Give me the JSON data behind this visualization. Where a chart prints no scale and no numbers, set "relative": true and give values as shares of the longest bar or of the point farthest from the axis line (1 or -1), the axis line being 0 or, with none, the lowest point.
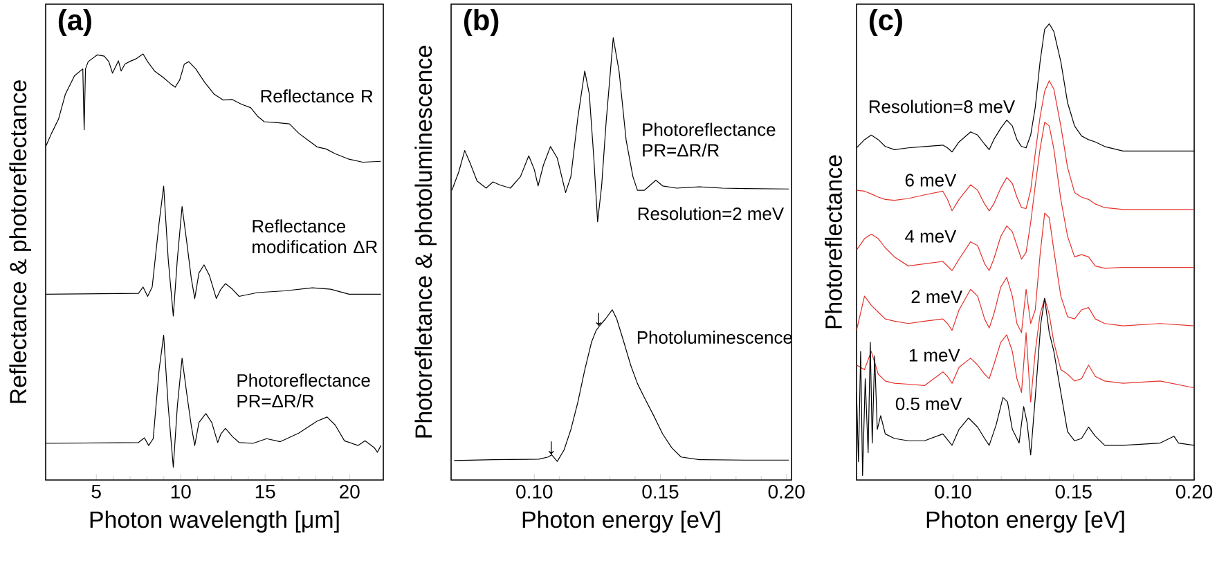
{
  "chart_data": [
    {
      "type": "line",
      "relative": true,
      "title": "(a)",
      "xlabel": "Photon wavelength [μm]",
      "ylabel": "Reflectance & photoreflectance",
      "xlim": [
        2,
        22
      ],
      "xticks": [
        5,
        10,
        15,
        20
      ],
      "series": [
        {
          "name": "Reflectance R",
          "color": "#000000",
          "x": [
            2.03,
            2.35,
            2.76,
            3.17,
            3.71,
            4.2,
            4.28,
            4.36,
            4.52,
            5.06,
            5.47,
            5.74,
            5.96,
            6.15,
            6.31,
            6.47,
            6.69,
            6.96,
            7.37,
            7.77,
            8.04,
            8.45,
            8.99,
            9.4,
            9.67,
            9.94,
            10.21,
            10.48,
            10.89,
            11.43,
            11.97,
            12.51,
            13.06,
            13.6,
            14.14,
            14.55,
            14.95,
            15.63,
            16.44,
            16.99,
            17.53,
            18.07,
            18.61,
            19.15,
            19.97,
            20.78,
            21.86
          ],
          "values": [
            0.785,
            0.814,
            0.847,
            0.906,
            0.949,
            0.965,
            0.822,
            0.965,
            0.982,
            0.998,
            0.995,
            0.982,
            0.955,
            0.971,
            0.984,
            0.96,
            0.976,
            0.982,
            0.989,
            1.0,
            0.982,
            0.96,
            0.944,
            0.93,
            0.922,
            0.939,
            0.976,
            0.982,
            0.965,
            0.933,
            0.906,
            0.892,
            0.893,
            0.882,
            0.874,
            0.854,
            0.841,
            0.839,
            0.836,
            0.814,
            0.798,
            0.782,
            0.777,
            0.766,
            0.753,
            0.746,
            0.748
          ]
        },
        {
          "name": "Reflectance modification ΔR",
          "color": "#000000",
          "x": [
            2.03,
            7.5,
            7.77,
            8.04,
            8.31,
            8.72,
            8.99,
            9.26,
            9.56,
            9.8,
            10.08,
            10.35,
            10.62,
            10.83,
            11.08,
            11.38,
            11.7,
            12.11,
            12.38,
            12.65,
            13.06,
            13.46,
            14.55,
            16.17,
            17.8,
            18.88,
            19.97,
            21.86
          ],
          "values": [
            0.436,
            0.438,
            0.453,
            0.431,
            0.453,
            0.604,
            0.69,
            0.518,
            0.385,
            0.518,
            0.642,
            0.561,
            0.475,
            0.426,
            0.486,
            0.505,
            0.48,
            0.426,
            0.448,
            0.461,
            0.448,
            0.431,
            0.44,
            0.444,
            0.451,
            0.448,
            0.436,
            0.436
          ]
        },
        {
          "name": "Photoreflectance PR=ΔR/R",
          "color": "#000000",
          "x": [
            2.03,
            7.5,
            7.85,
            8.1,
            8.37,
            8.72,
            8.99,
            9.26,
            9.56,
            9.8,
            10.08,
            10.35,
            10.62,
            10.83,
            11.08,
            11.49,
            11.84,
            12.19,
            12.38,
            12.65,
            13.06,
            13.46,
            14.28,
            15.09,
            15.9,
            16.99,
            18.07,
            18.67,
            19.15,
            19.7,
            20.51,
            20.92,
            21.46,
            21.65,
            21.86
          ],
          "values": [
            0.086,
            0.088,
            0.099,
            0.081,
            0.097,
            0.259,
            0.34,
            0.173,
            0.03,
            0.173,
            0.286,
            0.205,
            0.129,
            0.081,
            0.135,
            0.156,
            0.135,
            0.088,
            0.108,
            0.121,
            0.102,
            0.088,
            0.086,
            0.097,
            0.09,
            0.11,
            0.138,
            0.148,
            0.129,
            0.092,
            0.081,
            0.092,
            0.076,
            0.065,
            0.081
          ]
        }
      ]
    },
    {
      "type": "line",
      "relative": true,
      "title": "(b)",
      "xlabel": "Photon energy [eV]",
      "ylabel": "Photorefletance & photoluminescence",
      "xlim": [
        0.067,
        0.202
      ],
      "xticks": [
        {
          "value": 0.1,
          "label": "0.10"
        },
        {
          "value": 0.15,
          "label": "0.15"
        },
        {
          "value": 0.2,
          "label": "0.20"
        }
      ],
      "annotations": [
        "Resolution=2 meV",
        {
          "text": "↓",
          "x": 0.1067,
          "y": 0.057
        },
        {
          "text": "↓",
          "x": 0.1255,
          "y": 0.348
        }
      ],
      "series": [
        {
          "name": "Photoreflectance PR=ΔR/R",
          "color": "#000000",
          "x": [
            0.0673,
            0.07,
            0.0724,
            0.0745,
            0.0773,
            0.0809,
            0.0836,
            0.0864,
            0.0905,
            0.0945,
            0.0978,
            0.1,
            0.1015,
            0.1036,
            0.1064,
            0.1091,
            0.1124,
            0.1145,
            0.1173,
            0.12,
            0.1218,
            0.1236,
            0.1251,
            0.1267,
            0.1285,
            0.1313,
            0.1336,
            0.1364,
            0.1391,
            0.1409,
            0.1436,
            0.1482,
            0.1509,
            0.1564,
            0.1655,
            0.1745,
            0.1836,
            0.2009
          ],
          "values": [
            0.655,
            0.696,
            0.745,
            0.717,
            0.676,
            0.66,
            0.674,
            0.667,
            0.66,
            0.686,
            0.733,
            0.702,
            0.665,
            0.712,
            0.754,
            0.728,
            0.65,
            0.686,
            0.821,
            0.925,
            0.873,
            0.728,
            0.584,
            0.665,
            0.811,
            1.0,
            0.925,
            0.769,
            0.686,
            0.655,
            0.655,
            0.678,
            0.665,
            0.66,
            0.663,
            0.66,
            0.659,
            0.658
          ]
        },
        {
          "name": "Photoluminescence",
          "color": "#000000",
          "x": [
            0.0682,
            0.0836,
            0.1018,
            0.1055,
            0.1069,
            0.1091,
            0.1118,
            0.1145,
            0.1173,
            0.12,
            0.1227,
            0.1245,
            0.1258,
            0.1282,
            0.1309,
            0.1327,
            0.1355,
            0.1382,
            0.1409,
            0.1436,
            0.1473,
            0.1509,
            0.1545,
            0.1582,
            0.1655,
            0.1836,
            0.2009
          ],
          "values": [
            0.044,
            0.046,
            0.047,
            0.052,
            0.057,
            0.042,
            0.068,
            0.114,
            0.177,
            0.249,
            0.312,
            0.338,
            0.348,
            0.364,
            0.385,
            0.364,
            0.312,
            0.26,
            0.218,
            0.187,
            0.146,
            0.104,
            0.073,
            0.052,
            0.046,
            0.045,
            0.045
          ]
        }
      ]
    },
    {
      "type": "line",
      "relative": true,
      "title": "(c)",
      "xlabel": "Photon energy [eV]",
      "ylabel": "Photoreflectance",
      "xlim": [
        0.06,
        0.2
      ],
      "xticks": [
        {
          "value": 0.1,
          "label": "0.10"
        },
        {
          "value": 0.15,
          "label": "0.15"
        },
        {
          "value": 0.2,
          "label": "0.20"
        }
      ],
      "series": [
        {
          "name": "Resolution=8 meV",
          "color": "#000000",
          "x": [
            0.06,
            0.0633,
            0.0661,
            0.069,
            0.0719,
            0.0757,
            0.0815,
            0.0882,
            0.0958,
            0.0977,
            0.0996,
            0.1025,
            0.1073,
            0.1102,
            0.1131,
            0.115,
            0.1169,
            0.1198,
            0.1223,
            0.1246,
            0.1265,
            0.1284,
            0.1303,
            0.1322,
            0.1341,
            0.1361,
            0.138,
            0.1399,
            0.1418,
            0.1447,
            0.1475,
            0.1504,
            0.1533,
            0.1562,
            0.159,
            0.1629,
            0.1705,
            0.1859,
            0.2
          ],
          "values": [
            0.728,
            0.746,
            0.756,
            0.746,
            0.731,
            0.724,
            0.728,
            0.731,
            0.734,
            0.728,
            0.719,
            0.741,
            0.763,
            0.756,
            0.736,
            0.724,
            0.746,
            0.771,
            0.789,
            0.776,
            0.746,
            0.731,
            0.728,
            0.756,
            0.817,
            0.917,
            0.988,
            1.0,
            0.983,
            0.917,
            0.827,
            0.776,
            0.754,
            0.746,
            0.741,
            0.731,
            0.721,
            0.721,
            0.721
          ]
        },
        {
          "name": "6 meV",
          "color": "#e5312b",
          "x": [
            0.06,
            0.0633,
            0.0661,
            0.069,
            0.0719,
            0.0757,
            0.0815,
            0.0882,
            0.0958,
            0.0977,
            0.0996,
            0.1025,
            0.1073,
            0.1102,
            0.1131,
            0.115,
            0.1169,
            0.1198,
            0.1223,
            0.1246,
            0.1265,
            0.1284,
            0.1303,
            0.1322,
            0.1341,
            0.1361,
            0.138,
            0.1399,
            0.1418,
            0.1447,
            0.1475,
            0.1504,
            0.1533,
            0.1562,
            0.159,
            0.1629,
            0.1705,
            0.1859,
            0.2
          ],
          "values": [
            0.635,
            0.633,
            0.627,
            0.62,
            0.615,
            0.613,
            0.617,
            0.625,
            0.633,
            0.615,
            0.59,
            0.615,
            0.647,
            0.635,
            0.605,
            0.59,
            0.605,
            0.64,
            0.663,
            0.65,
            0.62,
            0.597,
            0.595,
            0.635,
            0.716,
            0.796,
            0.852,
            0.875,
            0.857,
            0.776,
            0.685,
            0.63,
            0.62,
            0.615,
            0.605,
            0.597,
            0.593,
            0.593,
            0.593
          ]
        },
        {
          "name": "4 meV",
          "color": "#e5312b",
          "x": [
            0.06,
            0.0633,
            0.0661,
            0.069,
            0.0719,
            0.0757,
            0.0815,
            0.0882,
            0.0958,
            0.0977,
            0.0996,
            0.1025,
            0.1073,
            0.1102,
            0.1131,
            0.115,
            0.1169,
            0.1198,
            0.1223,
            0.1246,
            0.1265,
            0.1284,
            0.1303,
            0.1322,
            0.1341,
            0.1361,
            0.138,
            0.1399,
            0.1418,
            0.1447,
            0.1475,
            0.1504,
            0.1533,
            0.1562,
            0.159,
            0.1629,
            0.1705,
            0.1859,
            0.2
          ],
          "values": [
            0.504,
            0.529,
            0.539,
            0.529,
            0.509,
            0.489,
            0.469,
            0.474,
            0.479,
            0.469,
            0.459,
            0.484,
            0.522,
            0.514,
            0.474,
            0.459,
            0.484,
            0.534,
            0.557,
            0.544,
            0.514,
            0.484,
            0.499,
            0.564,
            0.645,
            0.726,
            0.784,
            0.776,
            0.726,
            0.615,
            0.534,
            0.489,
            0.494,
            0.489,
            0.469,
            0.464,
            0.466,
            0.466,
            0.466
          ]
        },
        {
          "name": "2 meV",
          "color": "#e5312b",
          "x": [
            0.06,
            0.0633,
            0.0661,
            0.069,
            0.0719,
            0.0757,
            0.0815,
            0.0882,
            0.0958,
            0.0977,
            0.0996,
            0.1025,
            0.1073,
            0.1102,
            0.1131,
            0.115,
            0.1169,
            0.1198,
            0.1223,
            0.1246,
            0.1265,
            0.1284,
            0.1303,
            0.1322,
            0.1341,
            0.1361,
            0.138,
            0.1399,
            0.1418,
            0.1447,
            0.1475,
            0.1504,
            0.1533,
            0.1562,
            0.159,
            0.1629,
            0.1705,
            0.1859,
            0.2
          ],
          "values": [
            0.328,
            0.403,
            0.383,
            0.368,
            0.353,
            0.348,
            0.343,
            0.348,
            0.353,
            0.343,
            0.328,
            0.373,
            0.418,
            0.403,
            0.353,
            0.333,
            0.363,
            0.423,
            0.444,
            0.403,
            0.343,
            0.323,
            0.418,
            0.343,
            0.373,
            0.494,
            0.585,
            0.575,
            0.504,
            0.403,
            0.358,
            0.353,
            0.373,
            0.378,
            0.353,
            0.343,
            0.338,
            0.343,
            0.338
          ]
        },
        {
          "name": "1 meV",
          "color": "#e5312b",
          "x": [
            0.06,
            0.0633,
            0.0661,
            0.069,
            0.0719,
            0.0757,
            0.0815,
            0.0882,
            0.0958,
            0.0977,
            0.0996,
            0.1025,
            0.1073,
            0.1102,
            0.1131,
            0.115,
            0.1169,
            0.1198,
            0.1223,
            0.1246,
            0.1265,
            0.1284,
            0.1303,
            0.1322,
            0.1341,
            0.1361,
            0.138,
            0.1399,
            0.1418,
            0.1447,
            0.1475,
            0.1504,
            0.1533,
            0.1562,
            0.159,
            0.1629,
            0.1705,
            0.1859,
            0.2
          ],
          "values": [
            0.252,
            0.242,
            0.282,
            0.232,
            0.217,
            0.212,
            0.21,
            0.207,
            0.237,
            0.227,
            0.212,
            0.247,
            0.267,
            0.252,
            0.232,
            0.222,
            0.252,
            0.302,
            0.318,
            0.282,
            0.222,
            0.192,
            0.323,
            0.171,
            0.282,
            0.363,
            0.398,
            0.363,
            0.302,
            0.242,
            0.232,
            0.217,
            0.222,
            0.252,
            0.227,
            0.217,
            0.212,
            0.217,
            0.202
          ]
        },
        {
          "name": "0.5 meV",
          "color": "#000000",
          "x": [
            0.06,
            0.0608,
            0.0617,
            0.0625,
            0.0636,
            0.0648,
            0.0657,
            0.0665,
            0.0675,
            0.0686,
            0.07,
            0.0719,
            0.0757,
            0.0815,
            0.0882,
            0.0958,
            0.0996,
            0.1025,
            0.1064,
            0.1102,
            0.1131,
            0.115,
            0.1179,
            0.1207,
            0.1226,
            0.1246,
            0.1274,
            0.1293,
            0.1307,
            0.1322,
            0.1341,
            0.1364,
            0.138,
            0.1399,
            0.1418,
            0.1447,
            0.1475,
            0.1504,
            0.1533,
            0.1562,
            0.159,
            0.1629,
            0.1705,
            0.1859,
            0.1916,
            0.1935,
            0.2
          ],
          "values": [
            0.192,
            0.04,
            0.282,
            0.01,
            0.222,
            0.06,
            0.302,
            0.081,
            0.272,
            0.111,
            0.141,
            0.101,
            0.091,
            0.086,
            0.086,
            0.101,
            0.076,
            0.111,
            0.136,
            0.116,
            0.091,
            0.076,
            0.121,
            0.181,
            0.171,
            0.111,
            0.081,
            0.161,
            0.126,
            0.055,
            0.181,
            0.343,
            0.398,
            0.323,
            0.282,
            0.192,
            0.106,
            0.086,
            0.091,
            0.116,
            0.096,
            0.076,
            0.076,
            0.081,
            0.096,
            0.081,
            0.076
          ]
        }
      ]
    }
  ]
}
